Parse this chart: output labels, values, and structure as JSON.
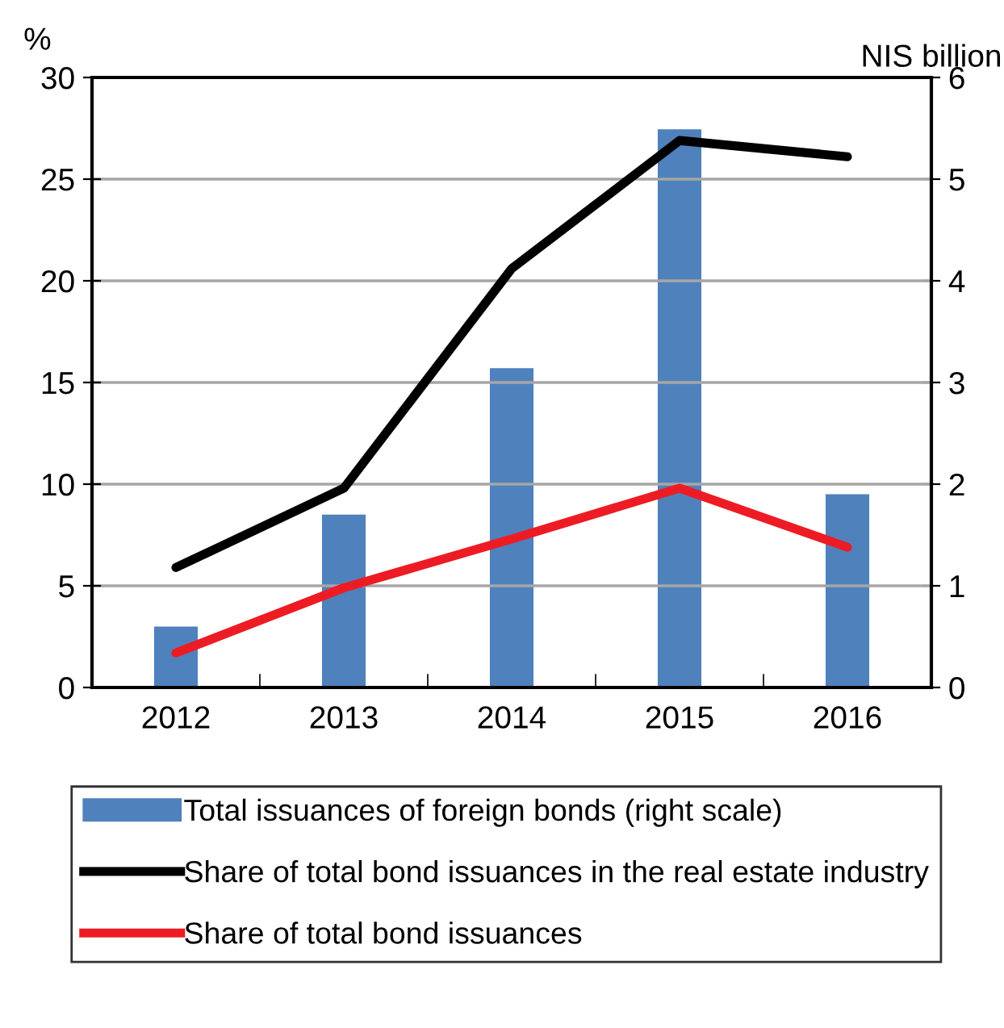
{
  "chart_data": {
    "type": "line",
    "categories": [
      "2012",
      "2013",
      "2014",
      "2015",
      "2016"
    ],
    "ylabel": "%",
    "y2label": "NIS billion",
    "ylim": [
      0,
      30
    ],
    "yticks": [
      0,
      5,
      10,
      15,
      20,
      25,
      30
    ],
    "y2lim": [
      0,
      6
    ],
    "y2ticks": [
      0,
      1,
      2,
      3,
      4,
      5,
      6
    ],
    "grid": "y",
    "legend": "bottom",
    "series": [
      {
        "name": "Total issuances of foreign bonds (right scale)",
        "type": "bar",
        "axis": "y2",
        "color": "#4f81bd",
        "values": [
          0.6,
          1.7,
          3.14,
          5.49,
          1.9
        ]
      },
      {
        "name": "Share of total bond issuances in the real estate industry",
        "color": "#000000",
        "values": [
          5.9,
          9.8,
          20.6,
          26.9,
          26.1
        ]
      },
      {
        "name": "Share of total bond issuances",
        "color": "#ed1c24",
        "values": [
          1.7,
          4.9,
          7.3,
          9.8,
          6.9
        ]
      }
    ]
  }
}
